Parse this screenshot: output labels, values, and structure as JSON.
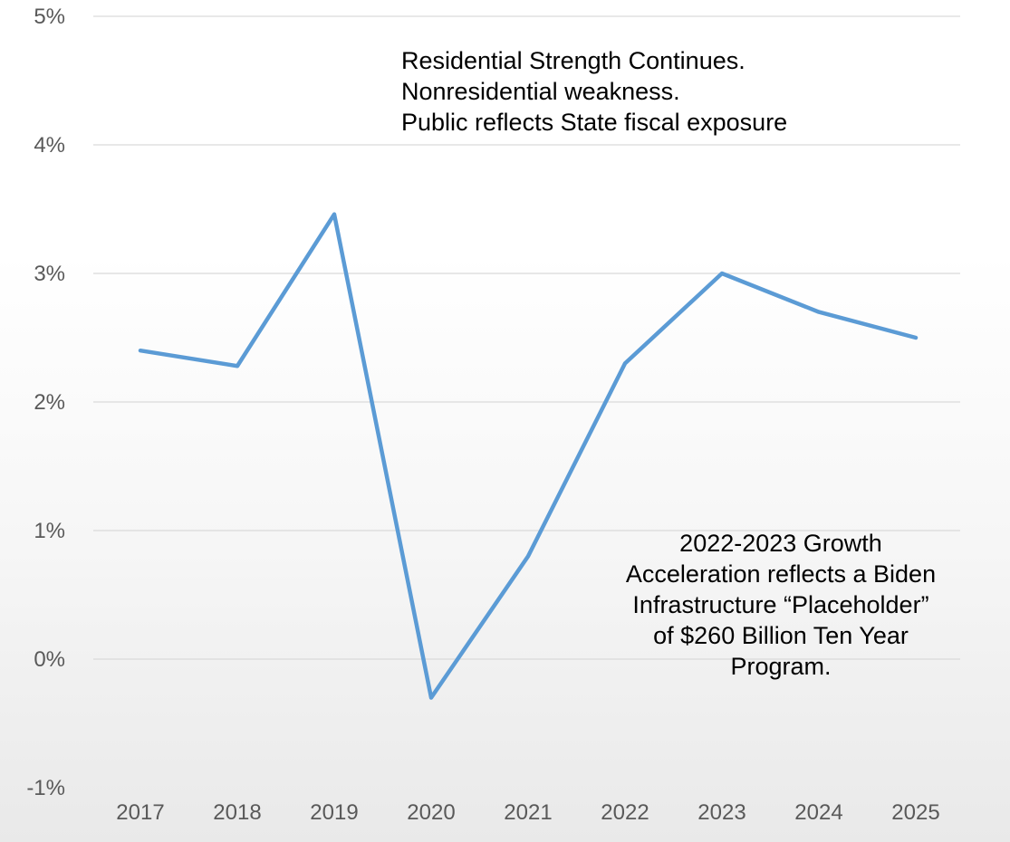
{
  "chart_data": {
    "type": "line",
    "title": "",
    "xlabel": "",
    "ylabel": "",
    "categories": [
      "2017",
      "2018",
      "2019",
      "2020",
      "2021",
      "2022",
      "2023",
      "2024",
      "2025"
    ],
    "series": [
      {
        "values": [
          2.4,
          2.28,
          3.46,
          -0.3,
          0.8,
          2.3,
          3.0,
          2.7,
          2.5
        ],
        "color": "#5b9bd5"
      }
    ],
    "ylim": [
      -1,
      5
    ],
    "yticks": [
      -1,
      0,
      1,
      2,
      3,
      4,
      5
    ],
    "ytick_labels": [
      "-1%",
      "0%",
      "1%",
      "2%",
      "3%",
      "4%",
      "5%"
    ],
    "grid": true,
    "gridline_color": "#d9d9d9",
    "legend": "none",
    "annotations": {
      "top": [
        "Residential Strength Continues.",
        "Nonresidential weakness.",
        "Public reflects State fiscal exposure"
      ],
      "bottom": [
        "2022-2023 Growth",
        "Acceleration reflects a Biden",
        "Infrastructure “Placeholder”",
        "of $260 Billion Ten Year",
        "Program."
      ]
    }
  }
}
